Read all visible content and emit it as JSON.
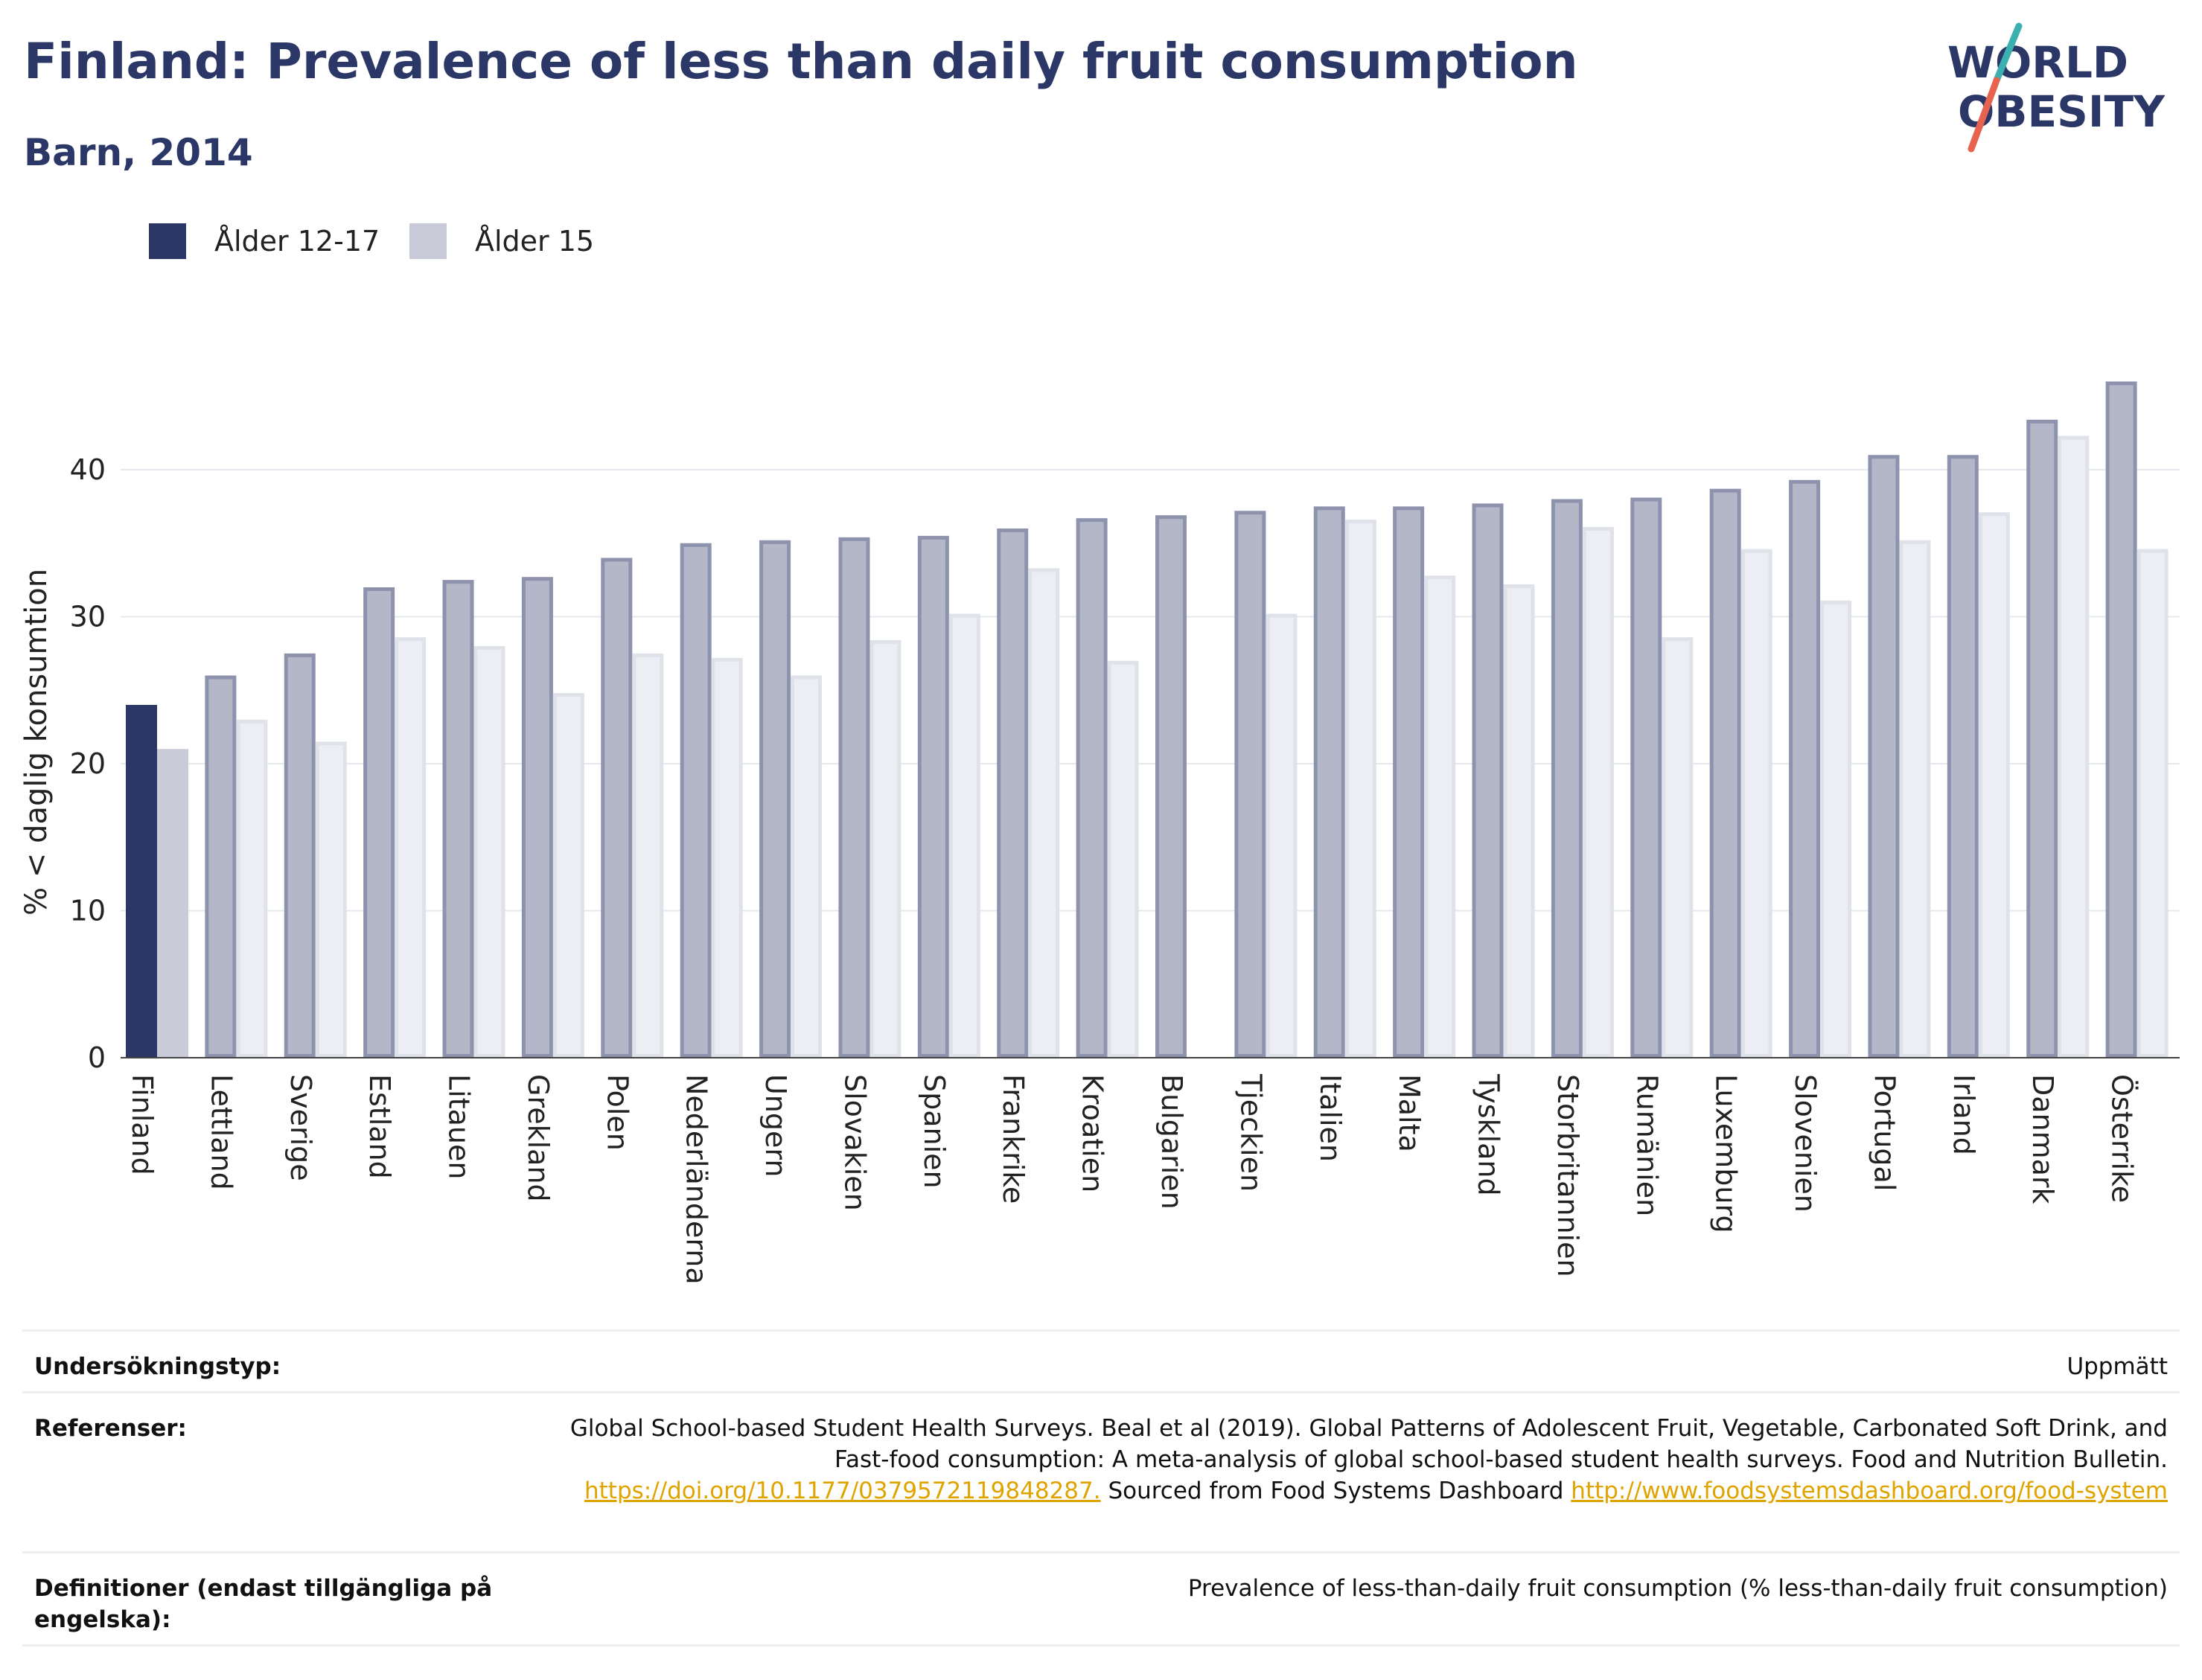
{
  "header": {
    "title": "Finland: Prevalence of less than daily fruit consumption",
    "subtitle": "Barn, 2014"
  },
  "logo": {
    "line1": "WORLD",
    "line2": "OBESITY",
    "colors": {
      "navy": "#2b3766",
      "teal": "#3ab0b0",
      "coral": "#e8634f"
    }
  },
  "legend": {
    "items": [
      {
        "label": "Ålder 12-17",
        "color": "#2b3766"
      },
      {
        "label": "Ålder 15",
        "color": "#c9ccd8"
      }
    ]
  },
  "chart_data": {
    "type": "bar",
    "ylabel": "% < daglig konsumtion",
    "ylim": [
      0,
      47
    ],
    "yticks": [
      0,
      10,
      20,
      30,
      40
    ],
    "grid": true,
    "legend_position": "top-left",
    "highlight_category": "Finland",
    "categories": [
      "Finland",
      "Lettland",
      "Sverige",
      "Estland",
      "Litauen",
      "Grekland",
      "Polen",
      "Nederländerna",
      "Ungern",
      "Slovakien",
      "Spanien",
      "Frankrike",
      "Kroatien",
      "Bulgarien",
      "Tjeckien",
      "Italien",
      "Malta",
      "Tyskland",
      "Storbritannien",
      "Rumänien",
      "Luxemburg",
      "Slovenien",
      "Portugal",
      "Irland",
      "Danmark",
      "Österrike"
    ],
    "series": [
      {
        "name": "Ålder 12-17",
        "values": [
          24.0,
          26.0,
          27.5,
          32.0,
          32.5,
          32.7,
          34.0,
          35.0,
          35.2,
          35.4,
          35.5,
          36.0,
          36.7,
          36.9,
          37.2,
          37.5,
          37.5,
          37.7,
          38.0,
          38.1,
          38.7,
          39.3,
          41.0,
          41.0,
          43.4,
          46.0
        ]
      },
      {
        "name": "Ålder 15",
        "values": [
          21.0,
          23.0,
          21.5,
          28.6,
          28.0,
          24.8,
          27.5,
          27.2,
          26.0,
          28.4,
          30.2,
          33.3,
          27.0,
          null,
          30.2,
          36.6,
          32.8,
          32.2,
          36.1,
          28.6,
          34.6,
          31.1,
          35.2,
          37.1,
          42.3,
          34.6
        ]
      }
    ],
    "colors": {
      "highlight_primary": "#2b3766",
      "highlight_secondary": "#c9ccd8",
      "other_primary_fill": "#b3b7c8",
      "other_primary_stroke": "#8d93ad",
      "other_secondary_fill": "#eceef3",
      "other_secondary_stroke": "#e0e2ea"
    }
  },
  "info": {
    "survey_type_label": "Undersökningstyp:",
    "survey_type_value": "Uppmätt",
    "references_label": "Referenser:",
    "references_text_1": "Global School-based Student Health Surveys. Beal et al (2019). Global Patterns of Adolescent Fruit, Vegetable, Carbonated Soft Drink, and Fast-food consumption: A meta-analysis of global school-based student health surveys. Food and Nutrition Bulletin.",
    "references_link_1": "https://doi.org/10.1177/0379572119848287.",
    "references_text_2": "Sourced from Food Systems Dashboard",
    "references_link_2": "http://www.foodsystemsdashboard.org/food-system",
    "definitions_label": "Definitioner (endast tillgängliga på engelska):",
    "definitions_value": "Prevalence of less-than-daily fruit consumption (% less-than-daily fruit consumption)"
  }
}
